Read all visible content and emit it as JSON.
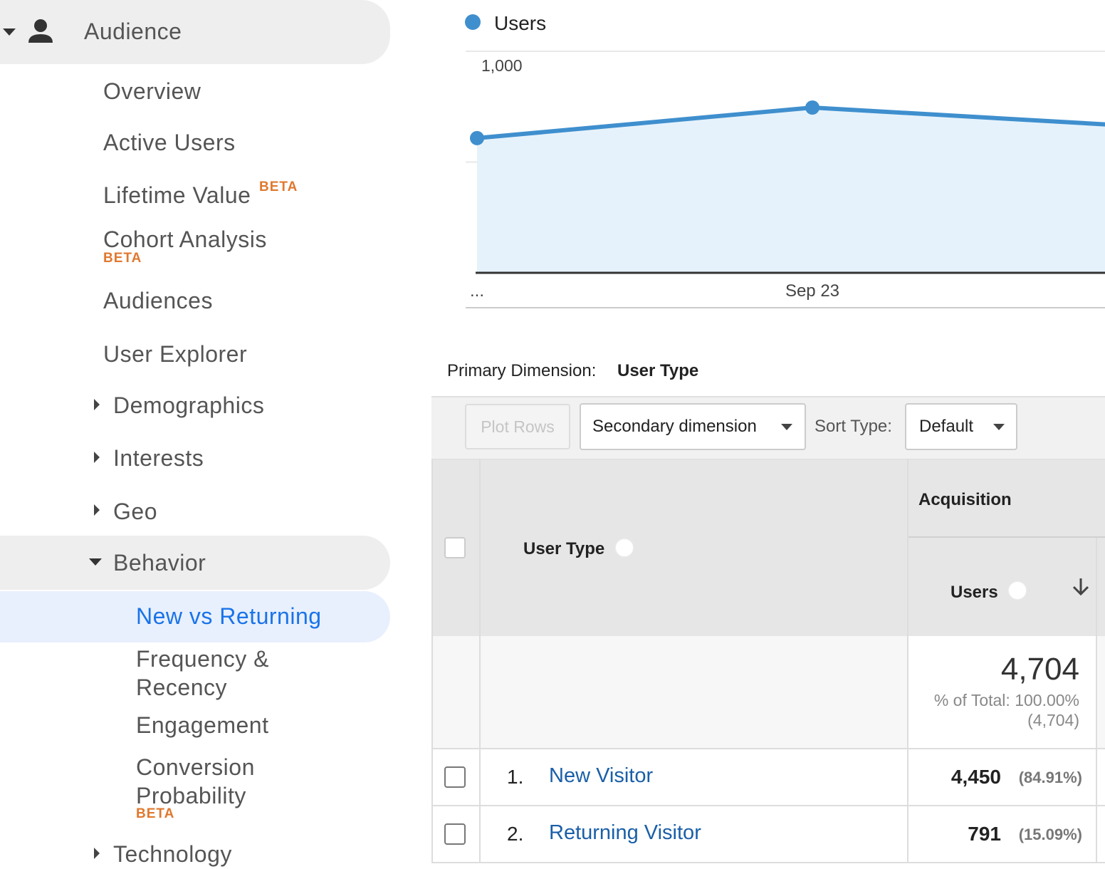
{
  "sidebar": {
    "section": "Audience",
    "items": [
      {
        "label": "Overview"
      },
      {
        "label": "Active Users"
      },
      {
        "label": "Lifetime Value",
        "badge": "BETA"
      },
      {
        "label": "Cohort Analysis",
        "badge": "BETA"
      },
      {
        "label": "Audiences"
      },
      {
        "label": "User Explorer"
      },
      {
        "label": "Demographics"
      },
      {
        "label": "Interests"
      },
      {
        "label": "Geo"
      },
      {
        "label": "Behavior"
      },
      {
        "label": "New vs Returning"
      },
      {
        "label": "Frequency & Recency"
      },
      {
        "label": "Engagement"
      },
      {
        "label": "Conversion Probability",
        "badge": "BETA"
      },
      {
        "label": "Technology"
      }
    ]
  },
  "chart_data": {
    "type": "line",
    "series": [
      {
        "name": "Users",
        "color": "#3f8fce",
        "values": [
          608,
          746,
          659
        ]
      }
    ],
    "categories": [
      "...",
      "Sep 23",
      null
    ],
    "ylim": [
      0,
      1000
    ],
    "yticks": [
      500,
      {
        "value": 1000,
        "label": "1,000"
      }
    ],
    "grid": true
  },
  "dimension": {
    "label": "Primary Dimension:",
    "value": "User Type"
  },
  "toolbar": {
    "plot_rows": "Plot Rows",
    "secondary": "Secondary dimension",
    "sort_label": "Sort Type:",
    "sort_value": "Default"
  },
  "table": {
    "group": "Acquisition",
    "dimension_header": "User Type",
    "metric_header": "Users",
    "total": {
      "value": "4,704",
      "percent": "% of Total: 100.00%",
      "of": "(4,704)"
    },
    "rows": [
      {
        "rank": "1.",
        "name": "New Visitor",
        "value": "4,450",
        "percent": "(84.91%)"
      },
      {
        "rank": "2.",
        "name": "Returning Visitor",
        "value": "791",
        "percent": "(15.09%)"
      }
    ]
  }
}
